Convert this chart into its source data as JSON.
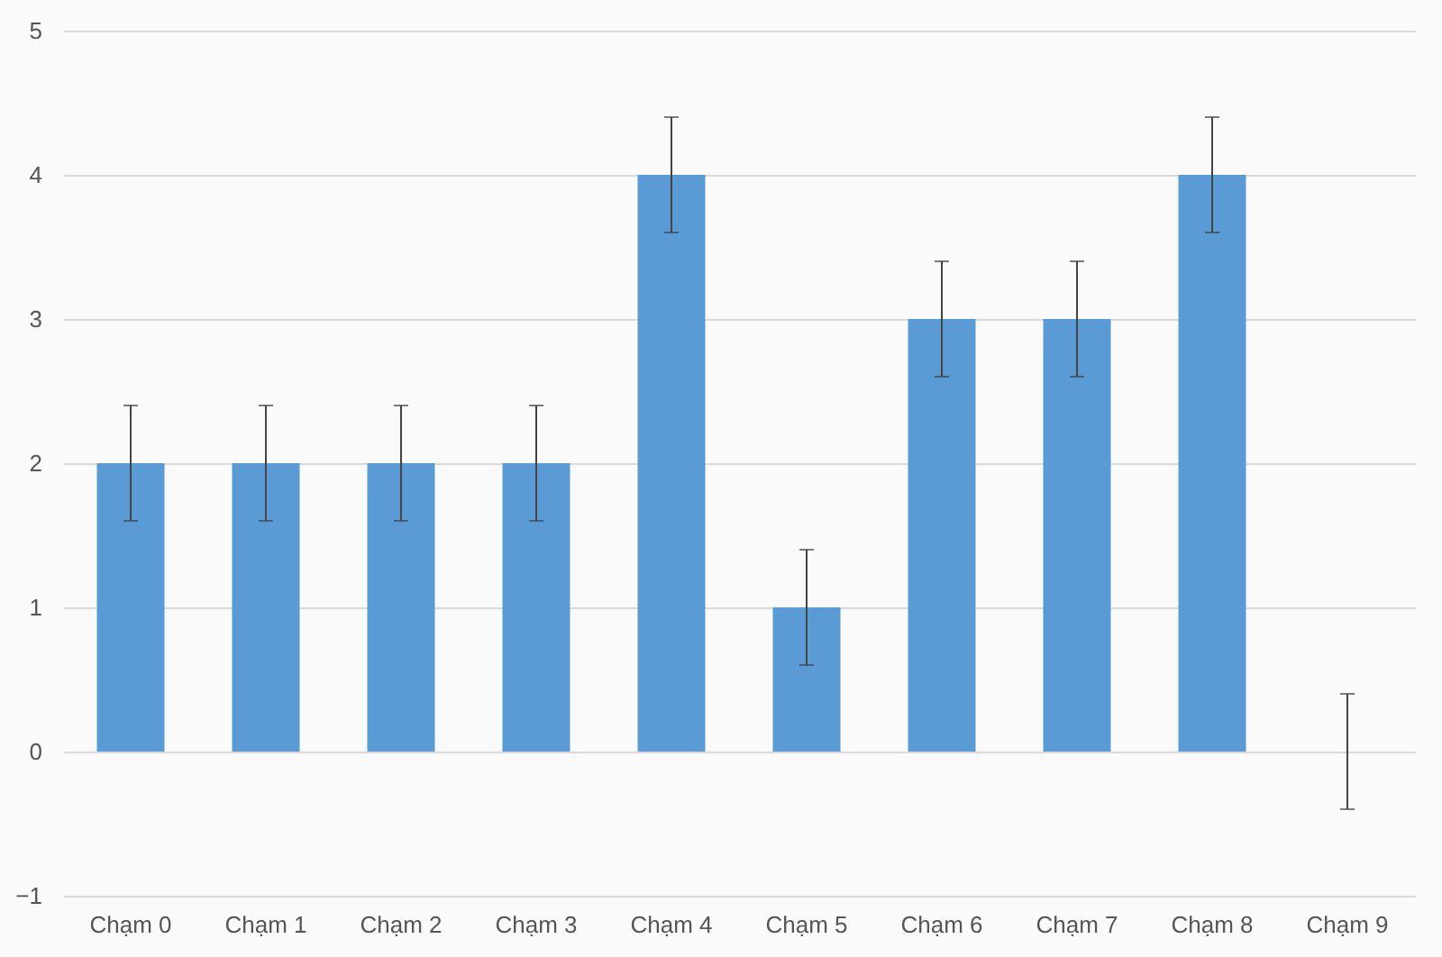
{
  "chart_data": {
    "type": "bar",
    "categories": [
      "Chạm 0",
      "Chạm 1",
      "Chạm 2",
      "Chạm 3",
      "Chạm 4",
      "Chạm 5",
      "Chạm 6",
      "Chạm 7",
      "Chạm 8",
      "Chạm 9"
    ],
    "values": [
      2,
      2,
      2,
      2,
      4,
      1,
      3,
      3,
      4,
      0
    ],
    "errors": [
      0.4,
      0.4,
      0.4,
      0.4,
      0.4,
      0.4,
      0.4,
      0.4,
      0.4,
      0.4
    ],
    "color": "#5b9bd5",
    "ylim": [
      -1,
      5
    ],
    "yticks": [
      -1,
      0,
      1,
      2,
      3,
      4,
      5
    ],
    "grid": "y"
  }
}
